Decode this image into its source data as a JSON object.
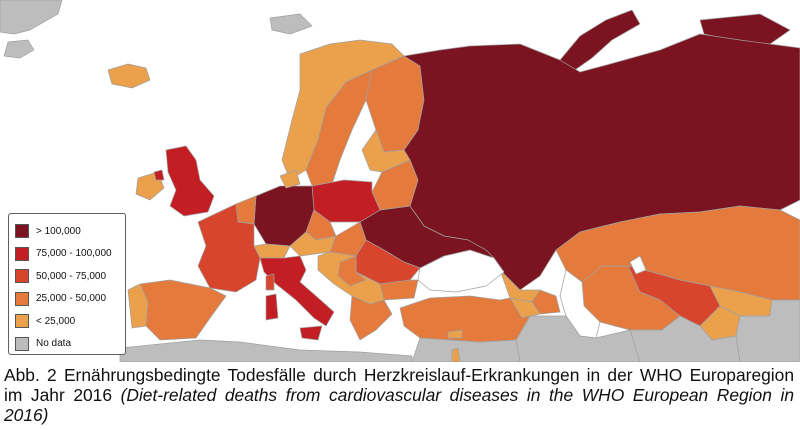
{
  "legend": {
    "items": [
      {
        "label": "> 100,000",
        "color": "#7b1420"
      },
      {
        "label": "75,000 - 100,000",
        "color": "#c21e24"
      },
      {
        "label": "50,000 - 75,000",
        "color": "#d8452d"
      },
      {
        "label": "25,000 - 50,000",
        "color": "#e47a3c"
      },
      {
        "label": "< 25,000",
        "color": "#eba04c"
      },
      {
        "label": "No data",
        "color": "#bdbdbd"
      }
    ]
  },
  "caption": {
    "german": "Abb. 2 Ernährungsbedingte Todesfälle durch Herzkreislauf-Erkrankungen in der WHO Europaregion im Jahr 2016",
    "english": "(Diet-related deaths from cardiovascular diseases in the WHO European Region in 2016)"
  },
  "colors": {
    "sea": "#ffffff",
    "border": "#9a9a9a",
    "gt100k": "#7b1420",
    "c75_100k": "#c21e24",
    "c50_75k": "#d8452d",
    "c25_50k": "#e47a3c",
    "lt25k": "#eba04c",
    "no_data": "#bdbdbd"
  }
}
